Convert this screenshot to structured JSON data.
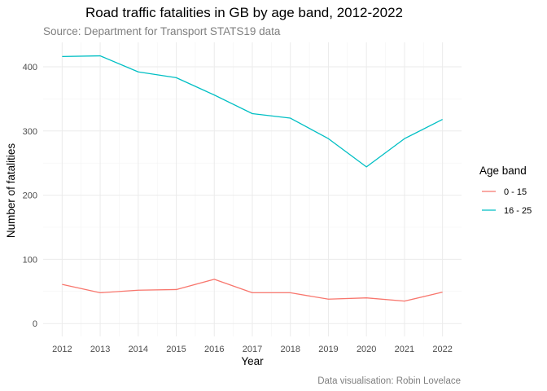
{
  "chart_data": {
    "type": "line",
    "title": "Road traffic fatalities in GB by age band, 2012-2022",
    "subtitle": "Source: Department for Transport STATS19 data",
    "caption": "Data visualisation: Robin Lovelace",
    "xlabel": "Year",
    "ylabel": "Number of fatalities",
    "x": [
      2012,
      2013,
      2014,
      2015,
      2016,
      2017,
      2018,
      2019,
      2020,
      2021,
      2022
    ],
    "xlim": [
      2011.5,
      2022.5
    ],
    "ylim": [
      -20,
      438
    ],
    "yticks": [
      0,
      100,
      200,
      300,
      400
    ],
    "grid": true,
    "legend": {
      "title": "Age band",
      "position": "right"
    },
    "series": [
      {
        "name": "0 - 15",
        "color": "#F8766D",
        "values": [
          61,
          48,
          52,
          53,
          69,
          48,
          48,
          38,
          40,
          35,
          49
        ]
      },
      {
        "name": "16 - 25",
        "color": "#00BFC4",
        "values": [
          416,
          417,
          392,
          383,
          356,
          327,
          320,
          288,
          244,
          288,
          318
        ]
      }
    ]
  }
}
